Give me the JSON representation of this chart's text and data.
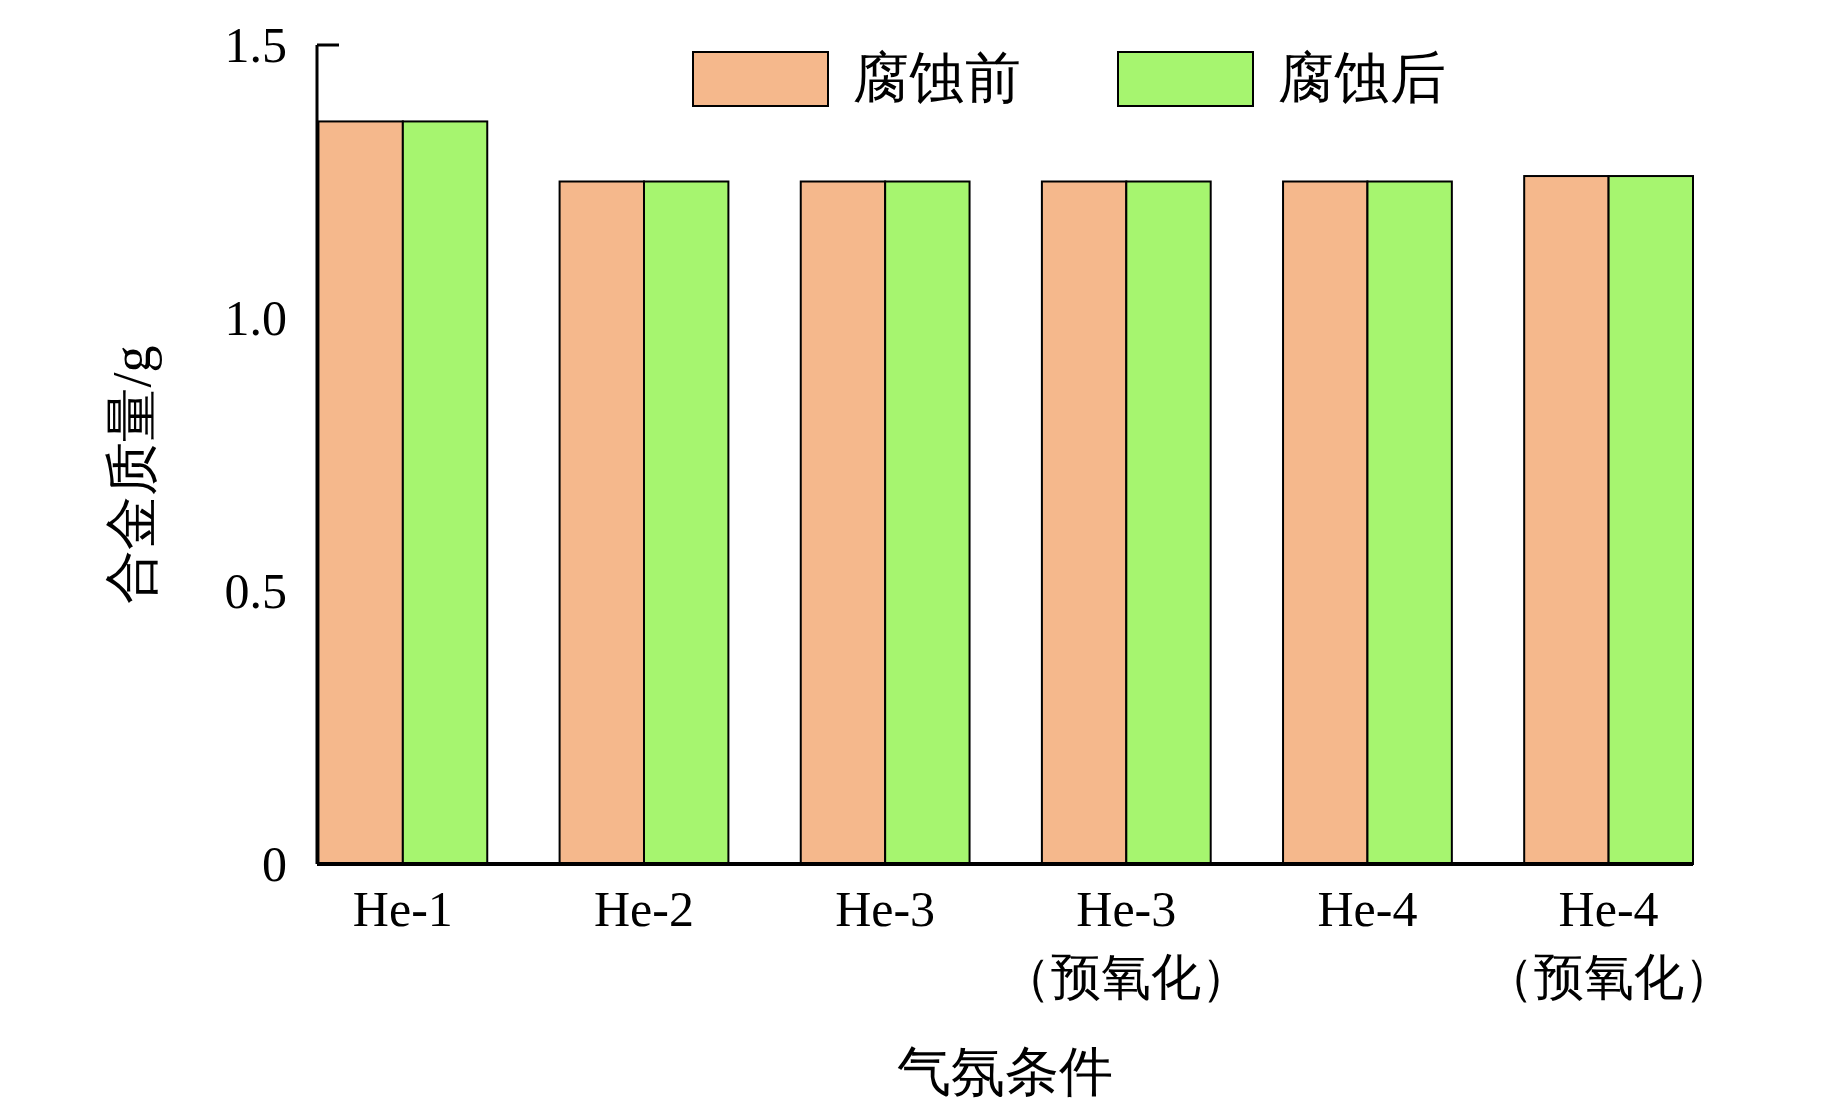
{
  "chart_data": {
    "type": "bar",
    "xlabel": "气氛条件",
    "ylabel": "合金质量/g",
    "categories": [
      "He-1",
      "He-2",
      "He-3",
      "He-3\n（预氧化）",
      "He-4",
      "He-4\n（预氧化）"
    ],
    "series": [
      {
        "name": "腐蚀前",
        "color": "#f5b88c",
        "values": [
          1.36,
          1.25,
          1.25,
          1.25,
          1.25,
          1.26
        ]
      },
      {
        "name": "腐蚀后",
        "color": "#a6f56f",
        "values": [
          1.36,
          1.25,
          1.25,
          1.25,
          1.25,
          1.26
        ]
      }
    ],
    "ylim": [
      0,
      1.5
    ],
    "yticks": [
      {
        "value": 0,
        "label": "0"
      },
      {
        "value": 0.5,
        "label": "0.5"
      },
      {
        "value": 1,
        "label": "1.0"
      },
      {
        "value": 1.5,
        "label": "1.5"
      }
    ],
    "grid": false,
    "legend": "top right"
  }
}
